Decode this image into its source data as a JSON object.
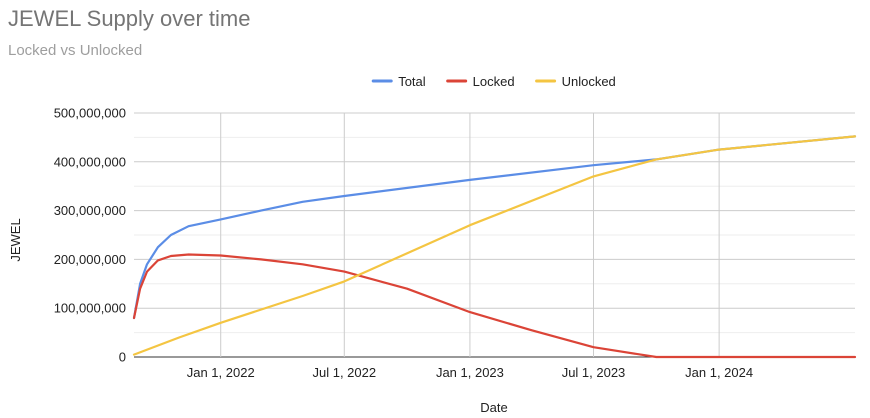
{
  "title": "JEWEL Supply over time",
  "subtitle": "Locked vs Unlocked",
  "chart_data": {
    "type": "line",
    "title": "JEWEL Supply over time",
    "subtitle": "Locked vs Unlocked",
    "xlabel": "Date",
    "ylabel": "JEWEL",
    "x_ticks": [
      "Jan 1, 2022",
      "Jul 1, 2022",
      "Jan 1, 2023",
      "Jul 1, 2023",
      "Jan 1, 2024"
    ],
    "y_ticks": [
      "0",
      "100,000,000",
      "200,000,000",
      "300,000,000",
      "400,000,000",
      "500,000,000"
    ],
    "xlim": [
      "2021-08-27",
      "2024-07-18"
    ],
    "ylim": [
      0,
      500000000
    ],
    "grid": true,
    "legend_position": "top",
    "series": [
      {
        "name": "Total",
        "color": "#5b8de6",
        "points": [
          [
            "2021-08-27",
            80000000
          ],
          [
            "2021-09-05",
            150000000
          ],
          [
            "2021-09-15",
            190000000
          ],
          [
            "2021-10-01",
            225000000
          ],
          [
            "2021-10-20",
            250000000
          ],
          [
            "2021-11-15",
            268000000
          ],
          [
            "2022-01-01",
            282000000
          ],
          [
            "2022-03-01",
            300000000
          ],
          [
            "2022-05-01",
            318000000
          ],
          [
            "2022-07-01",
            330000000
          ],
          [
            "2023-01-01",
            363000000
          ],
          [
            "2023-07-01",
            393000000
          ],
          [
            "2023-10-01",
            405000000
          ],
          [
            "2024-01-01",
            425000000
          ],
          [
            "2024-07-18",
            452000000
          ]
        ]
      },
      {
        "name": "Locked",
        "color": "#db4437",
        "points": [
          [
            "2021-08-27",
            80000000
          ],
          [
            "2021-09-05",
            140000000
          ],
          [
            "2021-09-15",
            175000000
          ],
          [
            "2021-10-01",
            198000000
          ],
          [
            "2021-10-20",
            207000000
          ],
          [
            "2021-11-15",
            210000000
          ],
          [
            "2022-01-01",
            208000000
          ],
          [
            "2022-03-01",
            200000000
          ],
          [
            "2022-05-01",
            190000000
          ],
          [
            "2022-07-01",
            175000000
          ],
          [
            "2022-10-01",
            140000000
          ],
          [
            "2023-01-01",
            92000000
          ],
          [
            "2023-04-01",
            55000000
          ],
          [
            "2023-07-01",
            20000000
          ],
          [
            "2023-10-01",
            0
          ],
          [
            "2024-01-01",
            0
          ],
          [
            "2024-07-18",
            0
          ]
        ]
      },
      {
        "name": "Unlocked",
        "color": "#f4c542",
        "points": [
          [
            "2021-08-27",
            5000000
          ],
          [
            "2021-11-01",
            40000000
          ],
          [
            "2022-01-01",
            70000000
          ],
          [
            "2022-05-01",
            125000000
          ],
          [
            "2022-07-01",
            155000000
          ],
          [
            "2023-01-01",
            270000000
          ],
          [
            "2023-07-01",
            370000000
          ],
          [
            "2023-10-01",
            405000000
          ],
          [
            "2024-01-01",
            425000000
          ],
          [
            "2024-07-18",
            452000000
          ]
        ]
      }
    ]
  }
}
